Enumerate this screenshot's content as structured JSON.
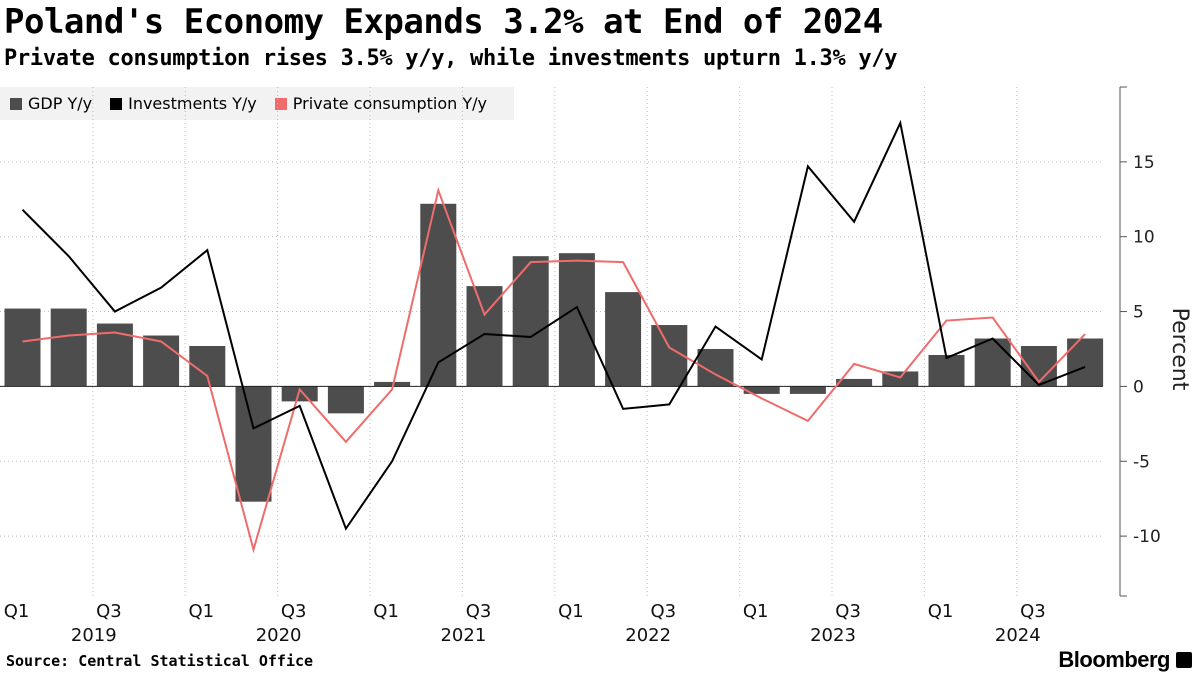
{
  "title": "Poland's Economy Expands 3.2% at End of 2024",
  "subtitle": "Private consumption rises 3.5% y/y, while investments upturn 1.3% y/y",
  "source": "Source:  Central Statistical Office",
  "brand": "Bloomberg",
  "colors": {
    "gdp": "#4d4d4d",
    "investments": "#000000",
    "consumption": "#f06c6c",
    "grid": "#bbbbbb"
  },
  "legend": [
    {
      "label": "GDP Y/y",
      "kind": "bar",
      "color": "#4d4d4d"
    },
    {
      "label": "Investments Y/y",
      "kind": "line",
      "color": "#000000"
    },
    {
      "label": "Private consumption Y/y",
      "kind": "line",
      "color": "#f06c6c"
    }
  ],
  "chart_data": {
    "type": "bar",
    "title": "Poland's Economy Expands 3.2% at End of 2024",
    "ylabel": "Percent",
    "ylim": [
      -14,
      20
    ],
    "yticks": [
      15,
      10,
      5,
      0,
      -5,
      -10
    ],
    "ytick_labels": [
      "15",
      "10",
      "5",
      "0",
      "-5",
      "-10"
    ],
    "categories": [
      "2019 Q1",
      "2019 Q2",
      "2019 Q3",
      "2019 Q4",
      "2020 Q1",
      "2020 Q2",
      "2020 Q3",
      "2020 Q4",
      "2021 Q1",
      "2021 Q2",
      "2021 Q3",
      "2021 Q4",
      "2022 Q1",
      "2022 Q2",
      "2022 Q3",
      "2022 Q4",
      "2023 Q1",
      "2023 Q2",
      "2023 Q3",
      "2023 Q4",
      "2024 Q1",
      "2024 Q2",
      "2024 Q3",
      "2024 Q4"
    ],
    "quarter_tick_labels": [
      "Q1",
      "",
      "Q3",
      "",
      "Q1",
      "",
      "Q3",
      "",
      "Q1",
      "",
      "Q3",
      "",
      "Q1",
      "",
      "Q3",
      "",
      "Q1",
      "",
      "Q3",
      "",
      "Q1",
      "",
      "Q3",
      ""
    ],
    "year_labels": [
      {
        "label": "2019",
        "first_index": 0,
        "last_index": 3
      },
      {
        "label": "2020",
        "first_index": 4,
        "last_index": 7
      },
      {
        "label": "2021",
        "first_index": 8,
        "last_index": 11
      },
      {
        "label": "2022",
        "first_index": 12,
        "last_index": 15
      },
      {
        "label": "2023",
        "first_index": 16,
        "last_index": 19
      },
      {
        "label": "2024",
        "first_index": 20,
        "last_index": 23
      }
    ],
    "series": [
      {
        "name": "GDP Y/y",
        "type": "bar",
        "color": "#4d4d4d",
        "values": [
          5.2,
          5.2,
          4.2,
          3.4,
          2.7,
          -7.7,
          -1.0,
          -1.8,
          0.3,
          12.2,
          6.7,
          8.7,
          8.9,
          6.3,
          4.1,
          2.5,
          -0.5,
          -0.5,
          0.5,
          1.0,
          2.1,
          3.2,
          2.7,
          3.2
        ]
      },
      {
        "name": "Investments Y/y",
        "type": "line",
        "color": "#000000",
        "values": [
          11.8,
          8.7,
          5.0,
          6.6,
          9.1,
          -2.8,
          -1.3,
          -9.5,
          -5.0,
          1.6,
          3.5,
          3.3,
          5.3,
          -1.5,
          -1.2,
          4.0,
          1.8,
          14.7,
          11.0,
          17.6,
          1.9,
          3.2,
          0.1,
          1.3
        ]
      },
      {
        "name": "Private consumption Y/y",
        "type": "line",
        "color": "#f06c6c",
        "values": [
          3.0,
          3.4,
          3.6,
          3.0,
          0.7,
          -10.9,
          -0.2,
          -3.7,
          -0.2,
          13.1,
          4.8,
          8.3,
          8.4,
          8.3,
          2.6,
          0.8,
          -0.8,
          -2.3,
          1.5,
          0.6,
          4.4,
          4.6,
          0.3,
          3.5
        ]
      }
    ]
  }
}
